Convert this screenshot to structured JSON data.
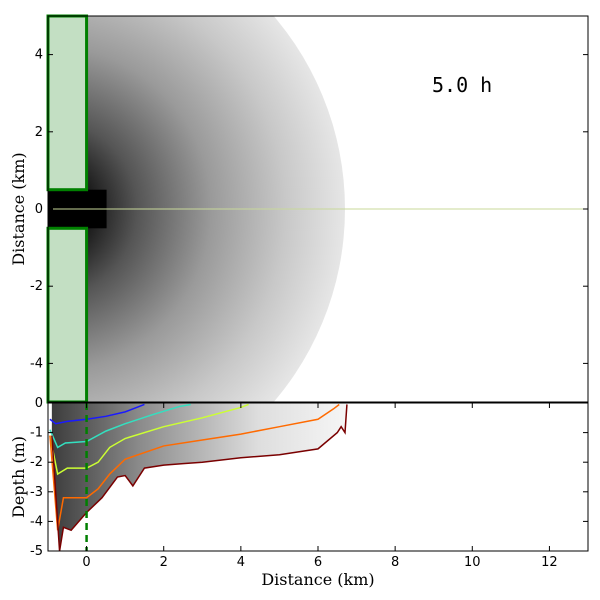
{
  "chart_data": [
    {
      "type": "heatmap",
      "time_label": "5.0 h",
      "xlabel": "",
      "ylabel": "Distance (km)",
      "xlim": [
        -1,
        13
      ],
      "ylim": [
        -5,
        5
      ],
      "yticks": [
        4,
        2,
        0,
        -2,
        -4
      ],
      "ytick_labels": [
        "4",
        "2",
        "0",
        "-2",
        "-4"
      ],
      "plume": {
        "origin_x_km": -1,
        "radius_km": 7.7,
        "channel_half_width_km": 0.5,
        "channel_length_km": 1
      },
      "colors": {
        "land_fill": "#c3dfc3",
        "land_edge": "#008000",
        "centerline": "#c8d89a"
      }
    },
    {
      "type": "line",
      "xlabel": "Distance (km)",
      "ylabel": "Depth (m)",
      "xlim": [
        -1,
        13
      ],
      "ylim": [
        -5,
        0
      ],
      "xticks": [
        0,
        2,
        4,
        6,
        8,
        10,
        12
      ],
      "xtick_labels": [
        "0",
        "2",
        "4",
        "6",
        "8",
        "10",
        "12"
      ],
      "yticks": [
        0,
        -1,
        -2,
        -3,
        -4,
        -5
      ],
      "ytick_labels": [
        "0",
        "-1",
        "-2",
        "-3",
        "-4",
        "-5"
      ],
      "mouth_x_km": 0,
      "series": [
        {
          "color": "#1a1aff",
          "points": [
            [
              -0.95,
              -0.55
            ],
            [
              -0.8,
              -0.7
            ],
            [
              -0.5,
              -0.62
            ],
            [
              0,
              -0.55
            ],
            [
              0.5,
              -0.45
            ],
            [
              1,
              -0.3
            ],
            [
              1.5,
              -0.05
            ]
          ]
        },
        {
          "color": "#33e0c0",
          "points": [
            [
              -0.95,
              -0.9
            ],
            [
              -0.75,
              -1.5
            ],
            [
              -0.55,
              -1.35
            ],
            [
              0,
              -1.3
            ],
            [
              0.5,
              -0.95
            ],
            [
              1,
              -0.7
            ],
            [
              1.7,
              -0.4
            ],
            [
              2.4,
              -0.12
            ],
            [
              2.7,
              -0.05
            ]
          ]
        },
        {
          "color": "#ccff33",
          "points": [
            [
              -0.95,
              -1.1
            ],
            [
              -0.75,
              -2.4
            ],
            [
              -0.5,
              -2.2
            ],
            [
              0,
              -2.2
            ],
            [
              0.3,
              -2.0
            ],
            [
              0.6,
              -1.5
            ],
            [
              1,
              -1.2
            ],
            [
              2,
              -0.8
            ],
            [
              3,
              -0.5
            ],
            [
              4,
              -0.15
            ],
            [
              4.2,
              -0.05
            ]
          ]
        },
        {
          "color": "#ff6a00",
          "points": [
            [
              -0.95,
              -1.1
            ],
            [
              -0.75,
              -4.3
            ],
            [
              -0.6,
              -3.2
            ],
            [
              0,
              -3.2
            ],
            [
              0.3,
              -2.9
            ],
            [
              0.6,
              -2.4
            ],
            [
              1,
              -1.9
            ],
            [
              2,
              -1.45
            ],
            [
              3,
              -1.25
            ],
            [
              4,
              -1.05
            ],
            [
              5,
              -0.8
            ],
            [
              6,
              -0.55
            ],
            [
              6.4,
              -0.2
            ],
            [
              6.55,
              -0.05
            ]
          ]
        },
        {
          "color": "#7a0000",
          "points": [
            [
              -0.9,
              -1.1
            ],
            [
              -0.7,
              -5.0
            ],
            [
              -0.6,
              -4.2
            ],
            [
              -0.4,
              -4.3
            ],
            [
              0,
              -3.7
            ],
            [
              0.4,
              -3.2
            ],
            [
              0.8,
              -2.5
            ],
            [
              1,
              -2.45
            ],
            [
              1.2,
              -2.8
            ],
            [
              1.5,
              -2.2
            ],
            [
              2,
              -2.1
            ],
            [
              2.5,
              -2.05
            ],
            [
              3,
              -2.0
            ],
            [
              4,
              -1.85
            ],
            [
              5,
              -1.75
            ],
            [
              6,
              -1.55
            ],
            [
              6.5,
              -1.0
            ],
            [
              6.6,
              -0.8
            ],
            [
              6.7,
              -1.0
            ],
            [
              6.75,
              -0.05
            ]
          ]
        }
      ]
    }
  ]
}
